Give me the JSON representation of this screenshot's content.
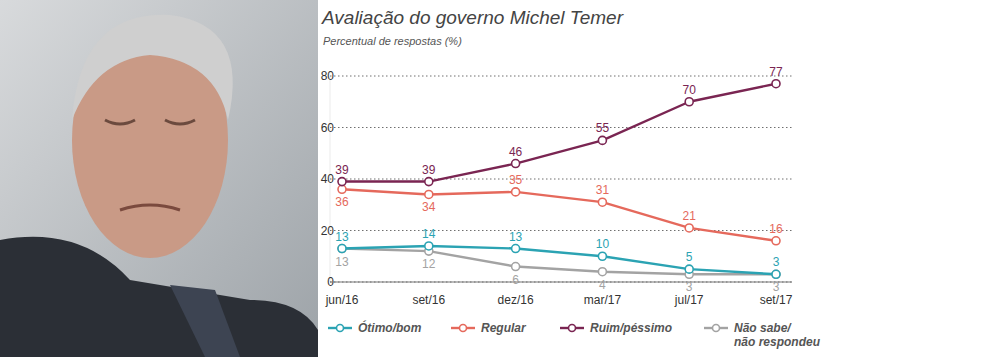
{
  "chart_data": {
    "type": "line",
    "title": "Avaliação do governo Michel Temer",
    "subtitle": "Percentual de respostas (%)",
    "categories": [
      "jun/16",
      "set/16",
      "dez/16",
      "mar/17",
      "jul/17",
      "set/17"
    ],
    "series": [
      {
        "name": "Ótimo/bom",
        "color": "#2ba3b3",
        "values": [
          13,
          14,
          13,
          10,
          5,
          3
        ]
      },
      {
        "name": "Regular",
        "color": "#e5695c",
        "values": [
          36,
          34,
          35,
          31,
          21,
          16
        ]
      },
      {
        "name": "Ruim/péssimo",
        "color": "#7a2552",
        "values": [
          39,
          39,
          46,
          55,
          70,
          77
        ]
      },
      {
        "name": "Não sabe/não respondeu",
        "color": "#a3a3a3",
        "values": [
          13,
          12,
          6,
          4,
          3,
          3
        ]
      }
    ],
    "ylim": [
      0,
      80
    ],
    "yticks": [
      0,
      20,
      40,
      60,
      80
    ],
    "grid": true,
    "data_labels": true,
    "marker": "circle",
    "legend": "bottom"
  }
}
